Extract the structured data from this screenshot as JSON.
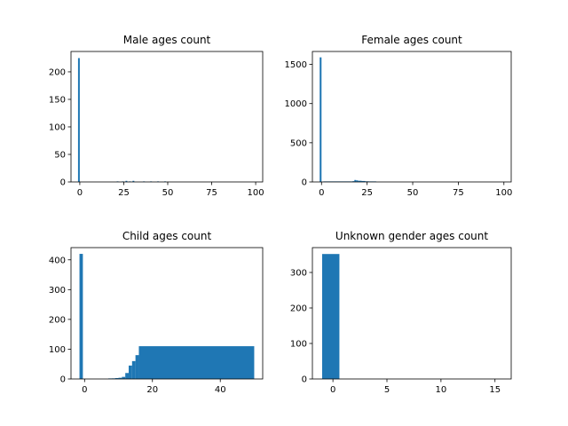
{
  "figure": {
    "bar_color": "#1f77b4"
  },
  "chart_data": [
    {
      "type": "bar",
      "title": "Male ages count",
      "xlabel": "",
      "ylabel": "",
      "xlim": [
        -5,
        104
      ],
      "ylim": [
        0,
        237
      ],
      "xticks": [
        0,
        25,
        50,
        75,
        100
      ],
      "yticks": [
        0,
        50,
        100,
        150,
        200
      ],
      "grid": false,
      "bins": [
        {
          "x0": -1,
          "x1": 0,
          "value": 225
        },
        {
          "x0": 21,
          "x1": 22,
          "value": 1
        },
        {
          "x0": 24,
          "x1": 25,
          "value": 1
        },
        {
          "x0": 26,
          "x1": 27,
          "value": 2
        },
        {
          "x0": 28,
          "x1": 29,
          "value": 1
        },
        {
          "x0": 30,
          "x1": 31,
          "value": 2
        },
        {
          "x0": 36,
          "x1": 37,
          "value": 1
        },
        {
          "x0": 40,
          "x1": 41,
          "value": 1
        },
        {
          "x0": 44,
          "x1": 45,
          "value": 1
        },
        {
          "x0": 48,
          "x1": 49,
          "value": 1
        }
      ]
    },
    {
      "type": "bar",
      "title": "Female ages count",
      "xlabel": "",
      "ylabel": "",
      "xlim": [
        -5,
        104
      ],
      "ylim": [
        0,
        1665
      ],
      "xticks": [
        0,
        25,
        50,
        75,
        100
      ],
      "yticks": [
        0,
        500,
        1000,
        1500
      ],
      "grid": false,
      "bins": [
        {
          "x0": -1,
          "x1": 0,
          "value": 1590
        },
        {
          "x0": 1,
          "x1": 17,
          "value": 5
        },
        {
          "x0": 17,
          "x1": 18,
          "value": 10
        },
        {
          "x0": 18,
          "x1": 19,
          "value": 25
        },
        {
          "x0": 19,
          "x1": 20,
          "value": 20
        },
        {
          "x0": 20,
          "x1": 22,
          "value": 15
        },
        {
          "x0": 22,
          "x1": 24,
          "value": 12
        },
        {
          "x0": 24,
          "x1": 26,
          "value": 8
        },
        {
          "x0": 26,
          "x1": 30,
          "value": 3
        }
      ]
    },
    {
      "type": "bar",
      "title": "Child ages count",
      "xlabel": "",
      "ylabel": "",
      "xlim": [
        -4,
        52.5
      ],
      "ylim": [
        0,
        441
      ],
      "xticks": [
        0,
        20,
        40
      ],
      "yticks": [
        0,
        100,
        200,
        300,
        400
      ],
      "grid": false,
      "bins": [
        {
          "x0": -1.5,
          "x1": -0.5,
          "value": 420
        },
        {
          "x0": 7,
          "x1": 8,
          "value": 1
        },
        {
          "x0": 8,
          "x1": 9,
          "value": 2
        },
        {
          "x0": 9,
          "x1": 10,
          "value": 3
        },
        {
          "x0": 10,
          "x1": 11,
          "value": 4
        },
        {
          "x0": 11,
          "x1": 12,
          "value": 7
        },
        {
          "x0": 12,
          "x1": 13,
          "value": 20
        },
        {
          "x0": 13,
          "x1": 14,
          "value": 45
        },
        {
          "x0": 14,
          "x1": 15,
          "value": 60
        },
        {
          "x0": 15,
          "x1": 16,
          "value": 80
        },
        {
          "x0": 16,
          "x1": 50,
          "value": 110
        }
      ]
    },
    {
      "type": "bar",
      "title": "Unknown gender ages count",
      "xlabel": "",
      "ylabel": "",
      "xlim": [
        -1.9,
        16.5
      ],
      "ylim": [
        0,
        370
      ],
      "xticks": [
        0,
        5,
        10,
        15
      ],
      "yticks": [
        0,
        100,
        200,
        300
      ],
      "grid": false,
      "bins": [
        {
          "x0": -1,
          "x1": 0.6,
          "value": 352
        }
      ]
    }
  ]
}
